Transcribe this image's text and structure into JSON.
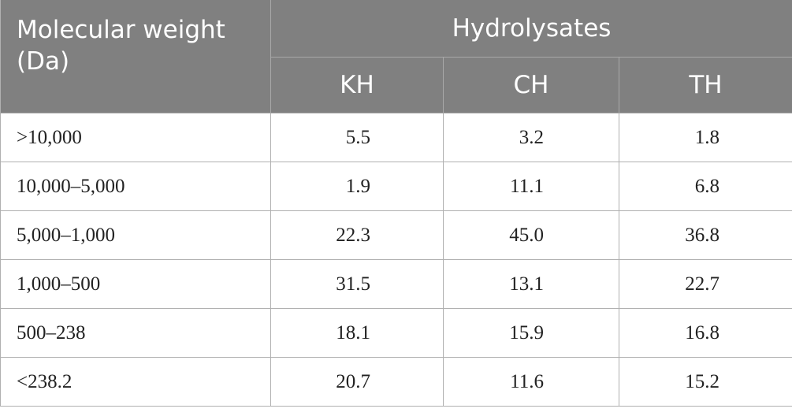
{
  "header": {
    "row_label": "Molecular weight (Da)",
    "group": "Hydrolysates",
    "columns": [
      "KH",
      "CH",
      "TH"
    ]
  },
  "table": {
    "rows": [
      [
        ">10,000",
        "5.5",
        "3.2",
        "1.8"
      ],
      [
        "10,000–5,000",
        "1.9",
        "11.1",
        "6.8"
      ],
      [
        "5,000–1,000",
        "22.3",
        "45.0",
        "36.8"
      ],
      [
        "1,000–500",
        "31.5",
        "13.1",
        "22.7"
      ],
      [
        "500–238",
        "18.1",
        "15.9",
        "16.8"
      ],
      [
        "<238.2",
        "20.7",
        "11.6",
        "15.2"
      ]
    ]
  }
}
